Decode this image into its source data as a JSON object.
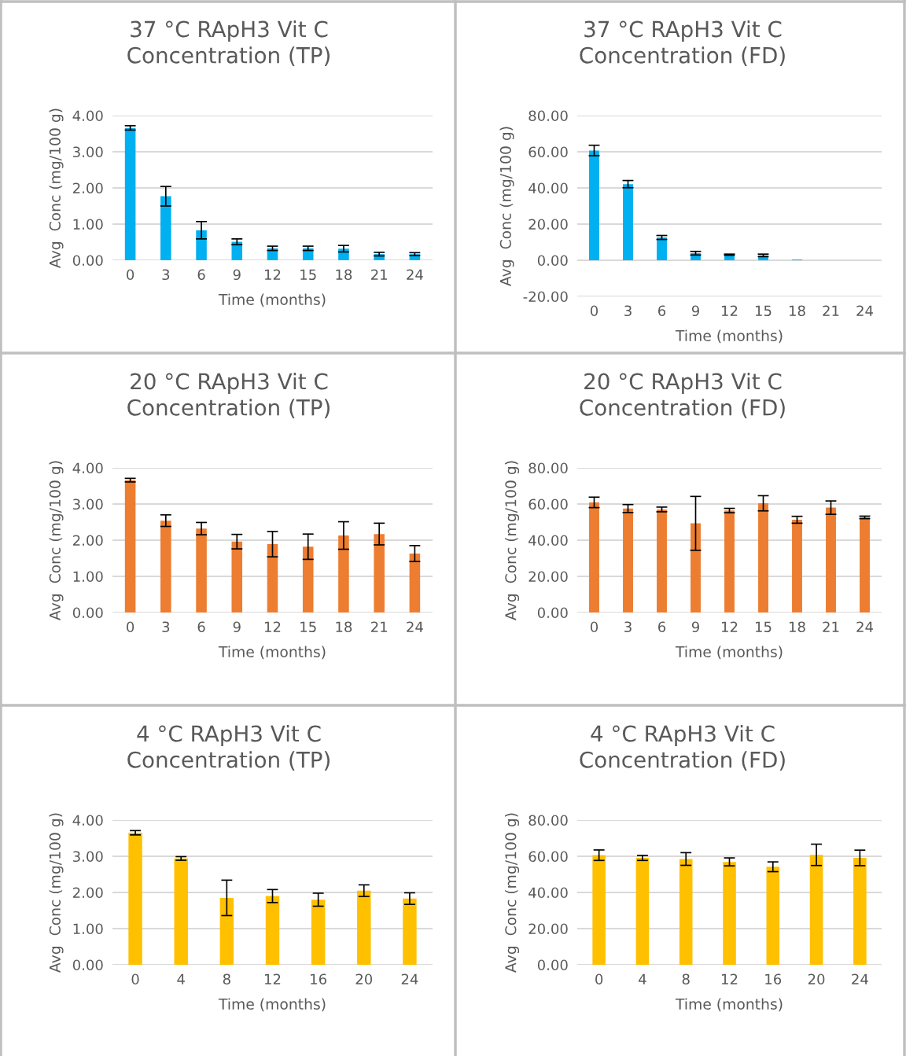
{
  "chart_data": [
    {
      "type": "bar",
      "title": "37 °C RApH3 Vit C\nConcentration (TP)",
      "xlabel": "Time (months)",
      "ylabel": "Avg  Conc (mg/100 g)",
      "categories": [
        "0",
        "3",
        "6",
        "9",
        "12",
        "15",
        "18",
        "21",
        "24"
      ],
      "color": "#00b0f0",
      "values": [
        3.66,
        1.77,
        0.83,
        0.51,
        0.33,
        0.33,
        0.32,
        0.17,
        0.17
      ],
      "errors": [
        0.06,
        0.27,
        0.24,
        0.08,
        0.06,
        0.06,
        0.09,
        0.05,
        0.04
      ],
      "ylim": [
        0,
        4
      ],
      "yticks": [
        {
          "value": 0,
          "label": "0.00"
        },
        {
          "value": 1,
          "label": "1.00"
        },
        {
          "value": 2,
          "label": "2.00"
        },
        {
          "value": 3,
          "label": "3.00"
        },
        {
          "value": 4,
          "label": "4.00"
        }
      ],
      "grid": "y",
      "legend": false
    },
    {
      "type": "bar",
      "title": "37 °C RApH3 Vit C\nConcentration (FD)",
      "xlabel": "Time (months)",
      "ylabel": "Avg  Conc (mg/100 g)",
      "categories": [
        "0",
        "3",
        "6",
        "9",
        "12",
        "15",
        "18",
        "21",
        "24"
      ],
      "color": "#00b0f0",
      "values": [
        60.7,
        42.1,
        12.6,
        3.9,
        3.1,
        2.7,
        0.4,
        0,
        0
      ],
      "errors": [
        2.9,
        2,
        1.1,
        1,
        0.3,
        0.7,
        null,
        null,
        null
      ],
      "ylim": [
        -20,
        80
      ],
      "yticks": [
        {
          "value": -20,
          "label": "-20.00"
        },
        {
          "value": 0,
          "label": "0.00"
        },
        {
          "value": 20,
          "label": "20.00"
        },
        {
          "value": 40,
          "label": "40.00"
        },
        {
          "value": 60,
          "label": "60.00"
        },
        {
          "value": 80,
          "label": "80.00"
        }
      ],
      "grid": "y",
      "legend": false
    },
    {
      "type": "bar",
      "title": "20 °C RApH3 Vit C\nConcentration (TP)",
      "xlabel": "Time (months)",
      "ylabel": "Avg  Conc (mg/100 g)",
      "categories": [
        "0",
        "3",
        "6",
        "9",
        "12",
        "15",
        "18",
        "21",
        "24"
      ],
      "color": "#ed7d31",
      "values": [
        3.66,
        2.54,
        2.32,
        1.96,
        1.89,
        1.82,
        2.13,
        2.17,
        1.63
      ],
      "errors": [
        0.05,
        0.16,
        0.17,
        0.2,
        0.35,
        0.35,
        0.38,
        0.3,
        0.22
      ],
      "ylim": [
        0,
        4
      ],
      "yticks": [
        {
          "value": 0,
          "label": "0.00"
        },
        {
          "value": 1,
          "label": "1.00"
        },
        {
          "value": 2,
          "label": "2.00"
        },
        {
          "value": 3,
          "label": "3.00"
        },
        {
          "value": 4,
          "label": "4.00"
        }
      ],
      "grid": "y",
      "legend": false
    },
    {
      "type": "bar",
      "title": "20 °C RApH3 Vit C\nConcentration (FD)",
      "xlabel": "Time (months)",
      "ylabel": "Avg  Conc (mg/100 g)",
      "categories": [
        "0",
        "3",
        "6",
        "9",
        "12",
        "15",
        "18",
        "21",
        "24"
      ],
      "color": "#ed7d31",
      "values": [
        60.9,
        57.5,
        57,
        49.3,
        56.4,
        60.4,
        51.3,
        58,
        52.6
      ],
      "errors": [
        2.9,
        2.2,
        1.3,
        14.9,
        1.2,
        4.2,
        1.9,
        3.7,
        0.7
      ],
      "ylim": [
        0,
        80
      ],
      "yticks": [
        {
          "value": 0,
          "label": "0.00"
        },
        {
          "value": 20,
          "label": "20.00"
        },
        {
          "value": 40,
          "label": "40.00"
        },
        {
          "value": 60,
          "label": "60.00"
        },
        {
          "value": 80,
          "label": "80.00"
        }
      ],
      "grid": "y",
      "legend": false
    },
    {
      "type": "bar",
      "title": "4 °C RApH3 Vit C\nConcentration (TP)",
      "xlabel": "Time (months)",
      "ylabel": "Avg  Conc (mg/100 g)",
      "categories": [
        "0",
        "4",
        "8",
        "12",
        "16",
        "20",
        "24"
      ],
      "color": "#ffc000",
      "values": [
        3.65,
        2.94,
        1.85,
        1.9,
        1.8,
        2.05,
        1.83
      ],
      "errors": [
        0.06,
        0.05,
        0.49,
        0.18,
        0.18,
        0.16,
        0.16
      ],
      "ylim": [
        0,
        4
      ],
      "yticks": [
        {
          "value": 0,
          "label": "0.00"
        },
        {
          "value": 1,
          "label": "1.00"
        },
        {
          "value": 2,
          "label": "2.00"
        },
        {
          "value": 3,
          "label": "3.00"
        },
        {
          "value": 4,
          "label": "4.00"
        }
      ],
      "grid": "y",
      "legend": false
    },
    {
      "type": "bar",
      "title": "4 °C RApH3 Vit C\nConcentration (FD)",
      "xlabel": "Time (months)",
      "ylabel": "Avg  Conc (mg/100 g)",
      "categories": [
        "0",
        "4",
        "8",
        "12",
        "16",
        "20",
        "24"
      ],
      "color": "#ffc000",
      "values": [
        60.6,
        59.1,
        58.5,
        56.9,
        54.2,
        60.8,
        59.1
      ],
      "errors": [
        2.9,
        1.4,
        3.5,
        2.2,
        2.7,
        5.9,
        4.3
      ],
      "ylim": [
        0,
        80
      ],
      "yticks": [
        {
          "value": 0,
          "label": "0.00"
        },
        {
          "value": 20,
          "label": "20.00"
        },
        {
          "value": 40,
          "label": "40.00"
        },
        {
          "value": 60,
          "label": "60.00"
        },
        {
          "value": 80,
          "label": "80.00"
        }
      ],
      "grid": "y",
      "legend": false
    }
  ]
}
